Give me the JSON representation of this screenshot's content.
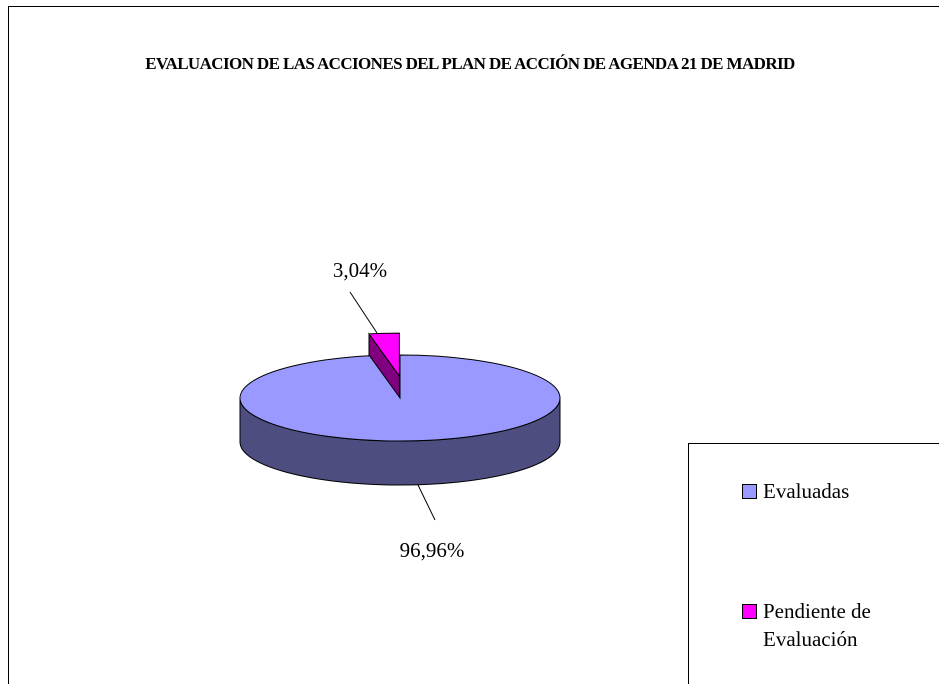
{
  "chart_data": {
    "type": "pie",
    "title": "EVALUACION DE LAS ACCIONES DEL PLAN DE ACCIÓN DE AGENDA 21 DE MADRID",
    "categories": [
      "Evaluadas",
      "Pendiente de Evaluación"
    ],
    "values": [
      96.96,
      3.04
    ],
    "value_labels": [
      "96,96%",
      "3,04%"
    ],
    "colors": [
      "#9999ff",
      "#ff00ff"
    ]
  }
}
